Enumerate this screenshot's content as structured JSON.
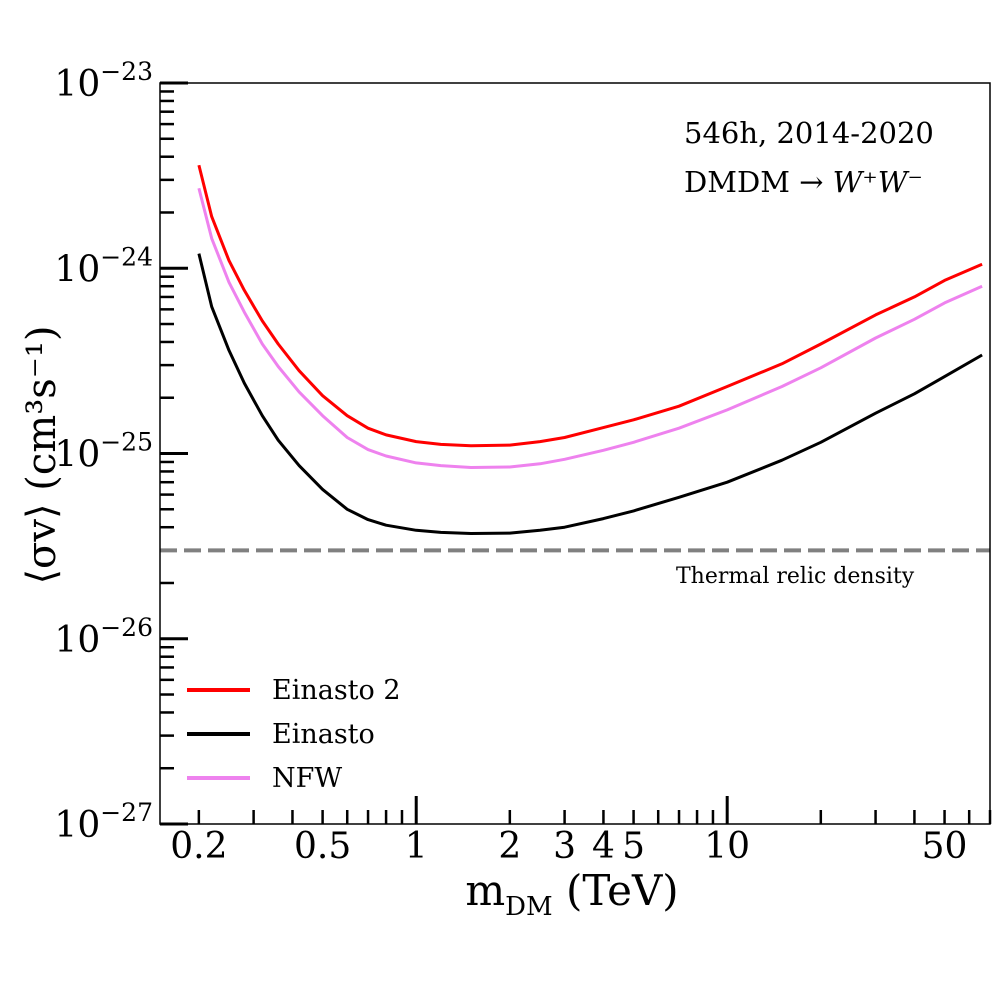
{
  "chart_data": {
    "type": "line",
    "title": "",
    "xlabel_main": "m",
    "xlabel_sub": "DM",
    "xlabel_unit": " (TeV)",
    "ylabel": "⟨σv⟩ (cm³s⁻¹)",
    "xscale": "log",
    "yscale": "log",
    "xlim": [
      0.15,
      70
    ],
    "ylim": [
      1e-27,
      1e-23
    ],
    "x_ticks": [
      {
        "value": 0.2,
        "label": "0.2"
      },
      {
        "value": 0.5,
        "label": "0.5"
      },
      {
        "value": 1,
        "label": "1"
      },
      {
        "value": 2,
        "label": "2"
      },
      {
        "value": 3,
        "label": "3"
      },
      {
        "value": 4,
        "label": "4"
      },
      {
        "value": 5,
        "label": "5"
      },
      {
        "value": 10,
        "label": "10"
      },
      {
        "value": 50,
        "label": "50"
      }
    ],
    "y_ticks": [
      {
        "value": 1e-23,
        "base": "10",
        "exp": "−23"
      },
      {
        "value": 1e-24,
        "base": "10",
        "exp": "−24"
      },
      {
        "value": 1e-25,
        "base": "10",
        "exp": "−25"
      },
      {
        "value": 1e-26,
        "base": "10",
        "exp": "−26"
      },
      {
        "value": 1e-27,
        "base": "10",
        "exp": "−27"
      }
    ],
    "x": [
      0.2,
      0.22,
      0.25,
      0.28,
      0.32,
      0.36,
      0.42,
      0.5,
      0.6,
      0.7,
      0.8,
      1.0,
      1.2,
      1.5,
      2.0,
      2.5,
      3.0,
      4.0,
      5.0,
      7.0,
      10,
      15,
      20,
      30,
      40,
      50,
      66
    ],
    "series": [
      {
        "name": "Einasto 2",
        "color": "#ff0000",
        "values": [
          3.6e-24,
          1.9e-24,
          1.1e-24,
          7.6e-25,
          5.2e-25,
          3.9e-25,
          2.8e-25,
          2.05e-25,
          1.6e-25,
          1.37e-25,
          1.26e-25,
          1.16e-25,
          1.12e-25,
          1.1e-25,
          1.11e-25,
          1.16e-25,
          1.22e-25,
          1.38e-25,
          1.52e-25,
          1.8e-25,
          2.3e-25,
          3.05e-25,
          3.9e-25,
          5.6e-25,
          7e-25,
          8.6e-25,
          1.05e-24
        ]
      },
      {
        "name": "Einasto",
        "color": "#000000",
        "values": [
          1.2e-24,
          6.2e-25,
          3.6e-25,
          2.4e-25,
          1.6e-25,
          1.18e-25,
          8.6e-26,
          6.4e-26,
          5e-26,
          4.4e-26,
          4.1e-26,
          3.85e-26,
          3.75e-26,
          3.7e-26,
          3.72e-26,
          3.85e-26,
          4e-26,
          4.45e-26,
          4.9e-26,
          5.8e-26,
          7e-26,
          9.2e-26,
          1.15e-25,
          1.65e-25,
          2.1e-25,
          2.6e-25,
          3.4e-25
        ]
      },
      {
        "name": "NFW",
        "color": "#ee82ee",
        "values": [
          2.7e-24,
          1.45e-24,
          8.4e-25,
          5.8e-25,
          3.9e-25,
          2.95e-25,
          2.15e-25,
          1.6e-25,
          1.22e-25,
          1.05e-25,
          9.7e-26,
          8.9e-26,
          8.6e-26,
          8.4e-26,
          8.45e-26,
          8.8e-26,
          9.3e-26,
          1.04e-25,
          1.15e-25,
          1.37e-25,
          1.72e-25,
          2.3e-25,
          2.9e-25,
          4.2e-25,
          5.3e-25,
          6.5e-25,
          8e-25
        ]
      }
    ],
    "reference_line": {
      "y": 3e-26,
      "label": "Thermal relic density",
      "color": "#808080",
      "style": "dashed"
    },
    "annotations": {
      "line1": "546h, 2014-2020",
      "line2_prefix": "DMDM → ",
      "line2_formula": "W⁺W⁻"
    },
    "legend": {
      "position": "bottom-left"
    },
    "grid": false
  }
}
